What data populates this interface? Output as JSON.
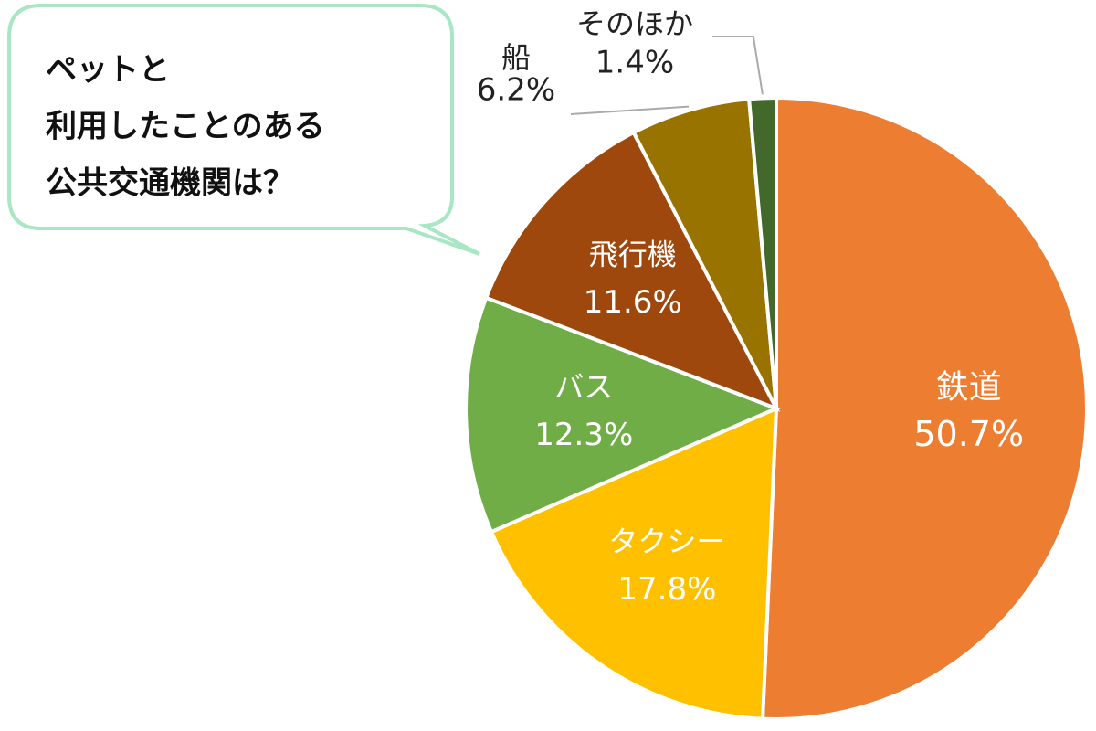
{
  "chart_data": {
    "type": "pie",
    "title": [
      "ペットと",
      "利用したことのある",
      "公共交通機関は？"
    ],
    "categories": [
      "鉄道",
      "タクシー",
      "バス",
      "飛行機",
      "船",
      "そのほか"
    ],
    "values": [
      50.7,
      17.8,
      12.3,
      11.6,
      6.2,
      1.4
    ],
    "value_labels": [
      "50.7%",
      "17.8%",
      "12.3%",
      "11.6%",
      "6.2%",
      "1.4%"
    ],
    "colors": [
      "#ed7d31",
      "#ffc000",
      "#70ad47",
      "#9e480e",
      "#997300",
      "#43682b"
    ]
  }
}
